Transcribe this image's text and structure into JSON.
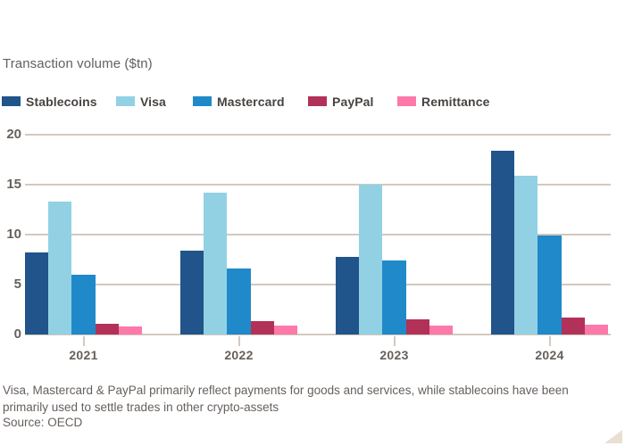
{
  "header": {
    "title": "Transaction volume ($tn)"
  },
  "chart_data": {
    "type": "bar",
    "title": "Transaction volume ($tn)",
    "categories": [
      "2021",
      "2022",
      "2023",
      "2024"
    ],
    "series": [
      {
        "name": "Stablecoins",
        "color": "#20548A",
        "values": [
          8.2,
          8.4,
          7.8,
          18.4
        ]
      },
      {
        "name": "Visa",
        "color": "#92D1E4",
        "values": [
          13.3,
          14.2,
          15.0,
          15.9
        ]
      },
      {
        "name": "Mastercard",
        "color": "#2089C9",
        "values": [
          6.0,
          6.6,
          7.4,
          9.9
        ]
      },
      {
        "name": "PayPal",
        "color": "#B23159",
        "values": [
          1.1,
          1.3,
          1.5,
          1.7
        ]
      },
      {
        "name": "Remittance",
        "color": "#FC79A9",
        "values": [
          0.8,
          0.9,
          0.9,
          1.0
        ]
      }
    ],
    "xlabel": "",
    "ylabel": "Transaction volume ($tn)",
    "ylim": [
      0,
      20
    ],
    "y_ticks": [
      0,
      5,
      10,
      15,
      20
    ],
    "grid": "horizontal",
    "legend_position": "top"
  },
  "footer": {
    "note": "Visa, Mastercard & PayPal primarily reflect payments for goods and services, while stablecoins have been primarily used to settle trades in other crypto-assets",
    "source": "Source: OECD"
  },
  "colors": {
    "background": "#FFFFFF",
    "grid": "#D3C9BE",
    "axis_text": "#66605C",
    "legend_text": "#474340",
    "corner_triangle": "#E9DFD3"
  }
}
